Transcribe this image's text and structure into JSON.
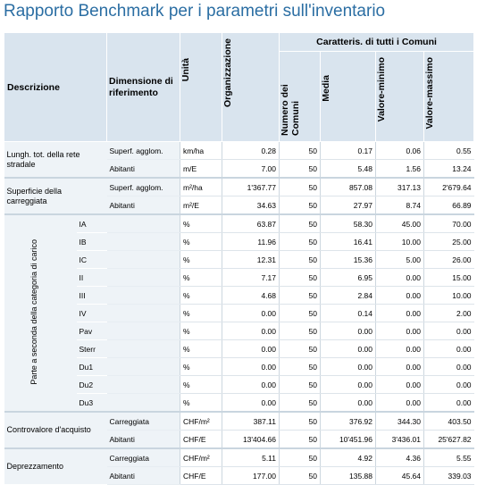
{
  "title": "Rapporto Benchmark per i parametri sull'inventario",
  "header": {
    "descrizione": "Descrizione",
    "dimensione": "Dimensione di riferimento",
    "unita": "Unità",
    "organizzazione": "Organizzazione",
    "caratteris": "Caratteris. di tutti i Comuni",
    "numero": "Numero dei Comuni",
    "media": "Media",
    "valore_min": "Valore-minimo",
    "valore_max": "Valore-massimo"
  },
  "groups": {
    "g1": "Lungh. tot. della rete stradale",
    "g2": "Superficie della carreggiata",
    "g3": "Parte a seconda della categoria di carico",
    "g4": "Controvalore d'acquisto",
    "g5": "Deprezzamento"
  },
  "rows": [
    {
      "sub": "",
      "ref": "Superf. agglom.",
      "unit": "km/ha",
      "org": "0.28",
      "n": "50",
      "avg": "0.17",
      "min": "0.06",
      "max": "0.55"
    },
    {
      "sub": "",
      "ref": "Abitanti",
      "unit": "m/E",
      "org": "7.00",
      "n": "50",
      "avg": "5.48",
      "min": "1.56",
      "max": "13.24"
    },
    {
      "sub": "",
      "ref": "Superf. agglom.",
      "unit": "m²/ha",
      "org": "1'367.77",
      "n": "50",
      "avg": "857.08",
      "min": "317.13",
      "max": "2'679.64"
    },
    {
      "sub": "",
      "ref": "Abitanti",
      "unit": "m²/E",
      "org": "34.63",
      "n": "50",
      "avg": "27.97",
      "min": "8.74",
      "max": "66.89"
    },
    {
      "sub": "IA",
      "ref": "",
      "unit": "%",
      "org": "63.87",
      "n": "50",
      "avg": "58.30",
      "min": "45.00",
      "max": "70.00"
    },
    {
      "sub": "IB",
      "ref": "",
      "unit": "%",
      "org": "11.96",
      "n": "50",
      "avg": "16.41",
      "min": "10.00",
      "max": "25.00"
    },
    {
      "sub": "IC",
      "ref": "",
      "unit": "%",
      "org": "12.31",
      "n": "50",
      "avg": "15.36",
      "min": "5.00",
      "max": "26.00"
    },
    {
      "sub": "II",
      "ref": "",
      "unit": "%",
      "org": "7.17",
      "n": "50",
      "avg": "6.95",
      "min": "0.00",
      "max": "15.00"
    },
    {
      "sub": "III",
      "ref": "",
      "unit": "%",
      "org": "4.68",
      "n": "50",
      "avg": "2.84",
      "min": "0.00",
      "max": "10.00"
    },
    {
      "sub": "IV",
      "ref": "",
      "unit": "%",
      "org": "0.00",
      "n": "50",
      "avg": "0.14",
      "min": "0.00",
      "max": "2.00"
    },
    {
      "sub": "Pav",
      "ref": "",
      "unit": "%",
      "org": "0.00",
      "n": "50",
      "avg": "0.00",
      "min": "0.00",
      "max": "0.00"
    },
    {
      "sub": "Sterr",
      "ref": "",
      "unit": "%",
      "org": "0.00",
      "n": "50",
      "avg": "0.00",
      "min": "0.00",
      "max": "0.00"
    },
    {
      "sub": "Du1",
      "ref": "",
      "unit": "%",
      "org": "0.00",
      "n": "50",
      "avg": "0.00",
      "min": "0.00",
      "max": "0.00"
    },
    {
      "sub": "Du2",
      "ref": "",
      "unit": "%",
      "org": "0.00",
      "n": "50",
      "avg": "0.00",
      "min": "0.00",
      "max": "0.00"
    },
    {
      "sub": "Du3",
      "ref": "",
      "unit": "%",
      "org": "0.00",
      "n": "50",
      "avg": "0.00",
      "min": "0.00",
      "max": "0.00"
    },
    {
      "sub": "",
      "ref": "Carreggiata",
      "unit": "CHF/m²",
      "org": "387.11",
      "n": "50",
      "avg": "376.92",
      "min": "344.30",
      "max": "403.50"
    },
    {
      "sub": "",
      "ref": "Abitanti",
      "unit": "CHF/E",
      "org": "13'404.66",
      "n": "50",
      "avg": "10'451.96",
      "min": "3'436.01",
      "max": "25'627.82"
    },
    {
      "sub": "",
      "ref": "Carreggiata",
      "unit": "CHF/m²",
      "org": "5.11",
      "n": "50",
      "avg": "4.92",
      "min": "4.36",
      "max": "5.55"
    },
    {
      "sub": "",
      "ref": "Abitanti",
      "unit": "CHF/E",
      "org": "177.00",
      "n": "50",
      "avg": "135.88",
      "min": "45.64",
      "max": "339.03"
    }
  ]
}
